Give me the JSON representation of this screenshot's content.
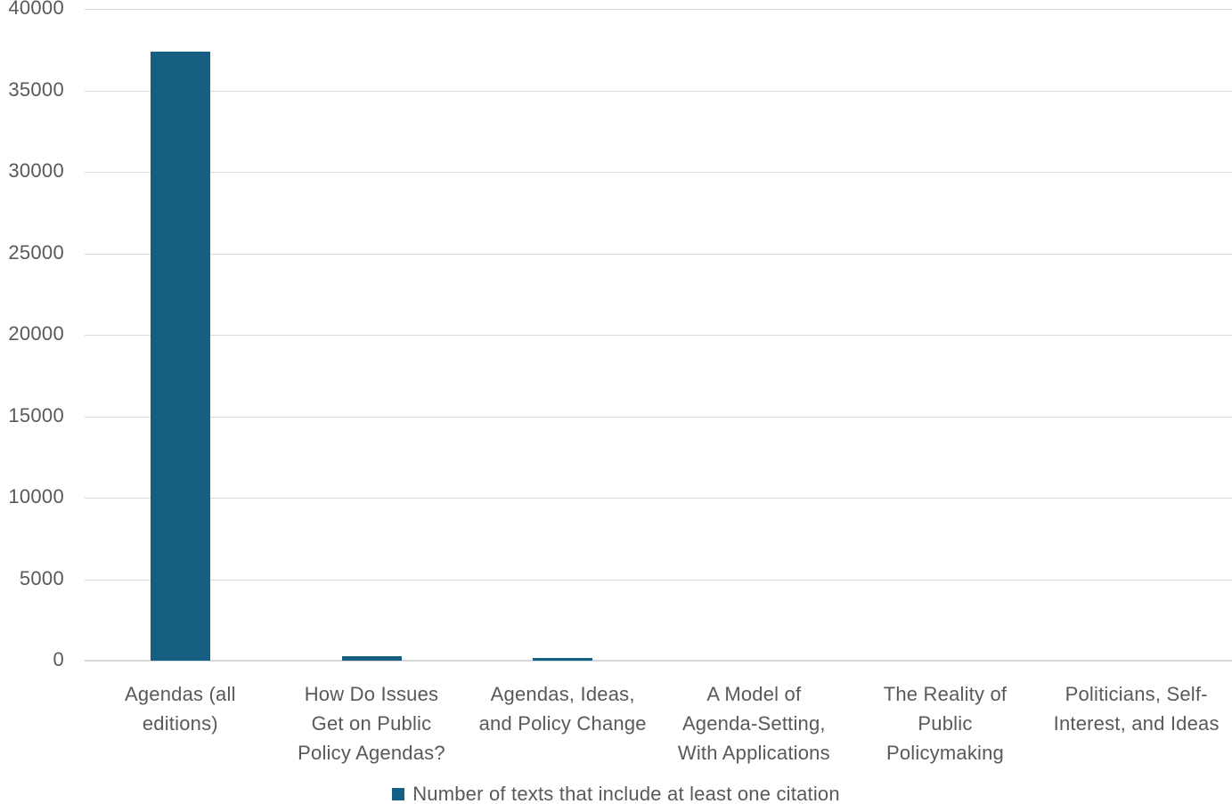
{
  "chart_data": {
    "type": "bar",
    "title": "",
    "xlabel": "",
    "ylabel": "",
    "categories": [
      "Agendas (all editions)",
      "How Do Issues Get on Public Policy Agendas?",
      "Agendas, Ideas, and Policy Change",
      "A Model of Agenda-Setting, With Applications",
      "The Reality of Public Policymaking",
      "Politicians, Self-Interest, and Ideas"
    ],
    "category_label_lines": [
      [
        "Agendas (all",
        "editions)"
      ],
      [
        "How Do Issues",
        "Get on Public",
        "Policy Agendas?"
      ],
      [
        "Agendas, Ideas,",
        "and Policy Change"
      ],
      [
        "A Model of",
        "Agenda-Setting,",
        "With Applications"
      ],
      [
        "The Reality of",
        "Public",
        "Policymaking"
      ],
      [
        "Politicians, Self-",
        "Interest, and Ideas"
      ]
    ],
    "series": [
      {
        "name": "Number of texts that include at least one citation",
        "values": [
          37400,
          270,
          150,
          0,
          0,
          0
        ]
      }
    ],
    "ylim": [
      0,
      40000
    ],
    "ytick_step": 5000,
    "ytick_labels": [
      "0",
      "5000",
      "10000",
      "15000",
      "20000",
      "25000",
      "30000",
      "35000",
      "40000"
    ],
    "grid": true,
    "legend_position": "bottom",
    "legend": "Number of texts that include at least one citation",
    "colors": {
      "bar_fill": "#156082",
      "axis_text": "#595959",
      "gridline": "#d9d9d9",
      "background": "#ffffff"
    }
  }
}
